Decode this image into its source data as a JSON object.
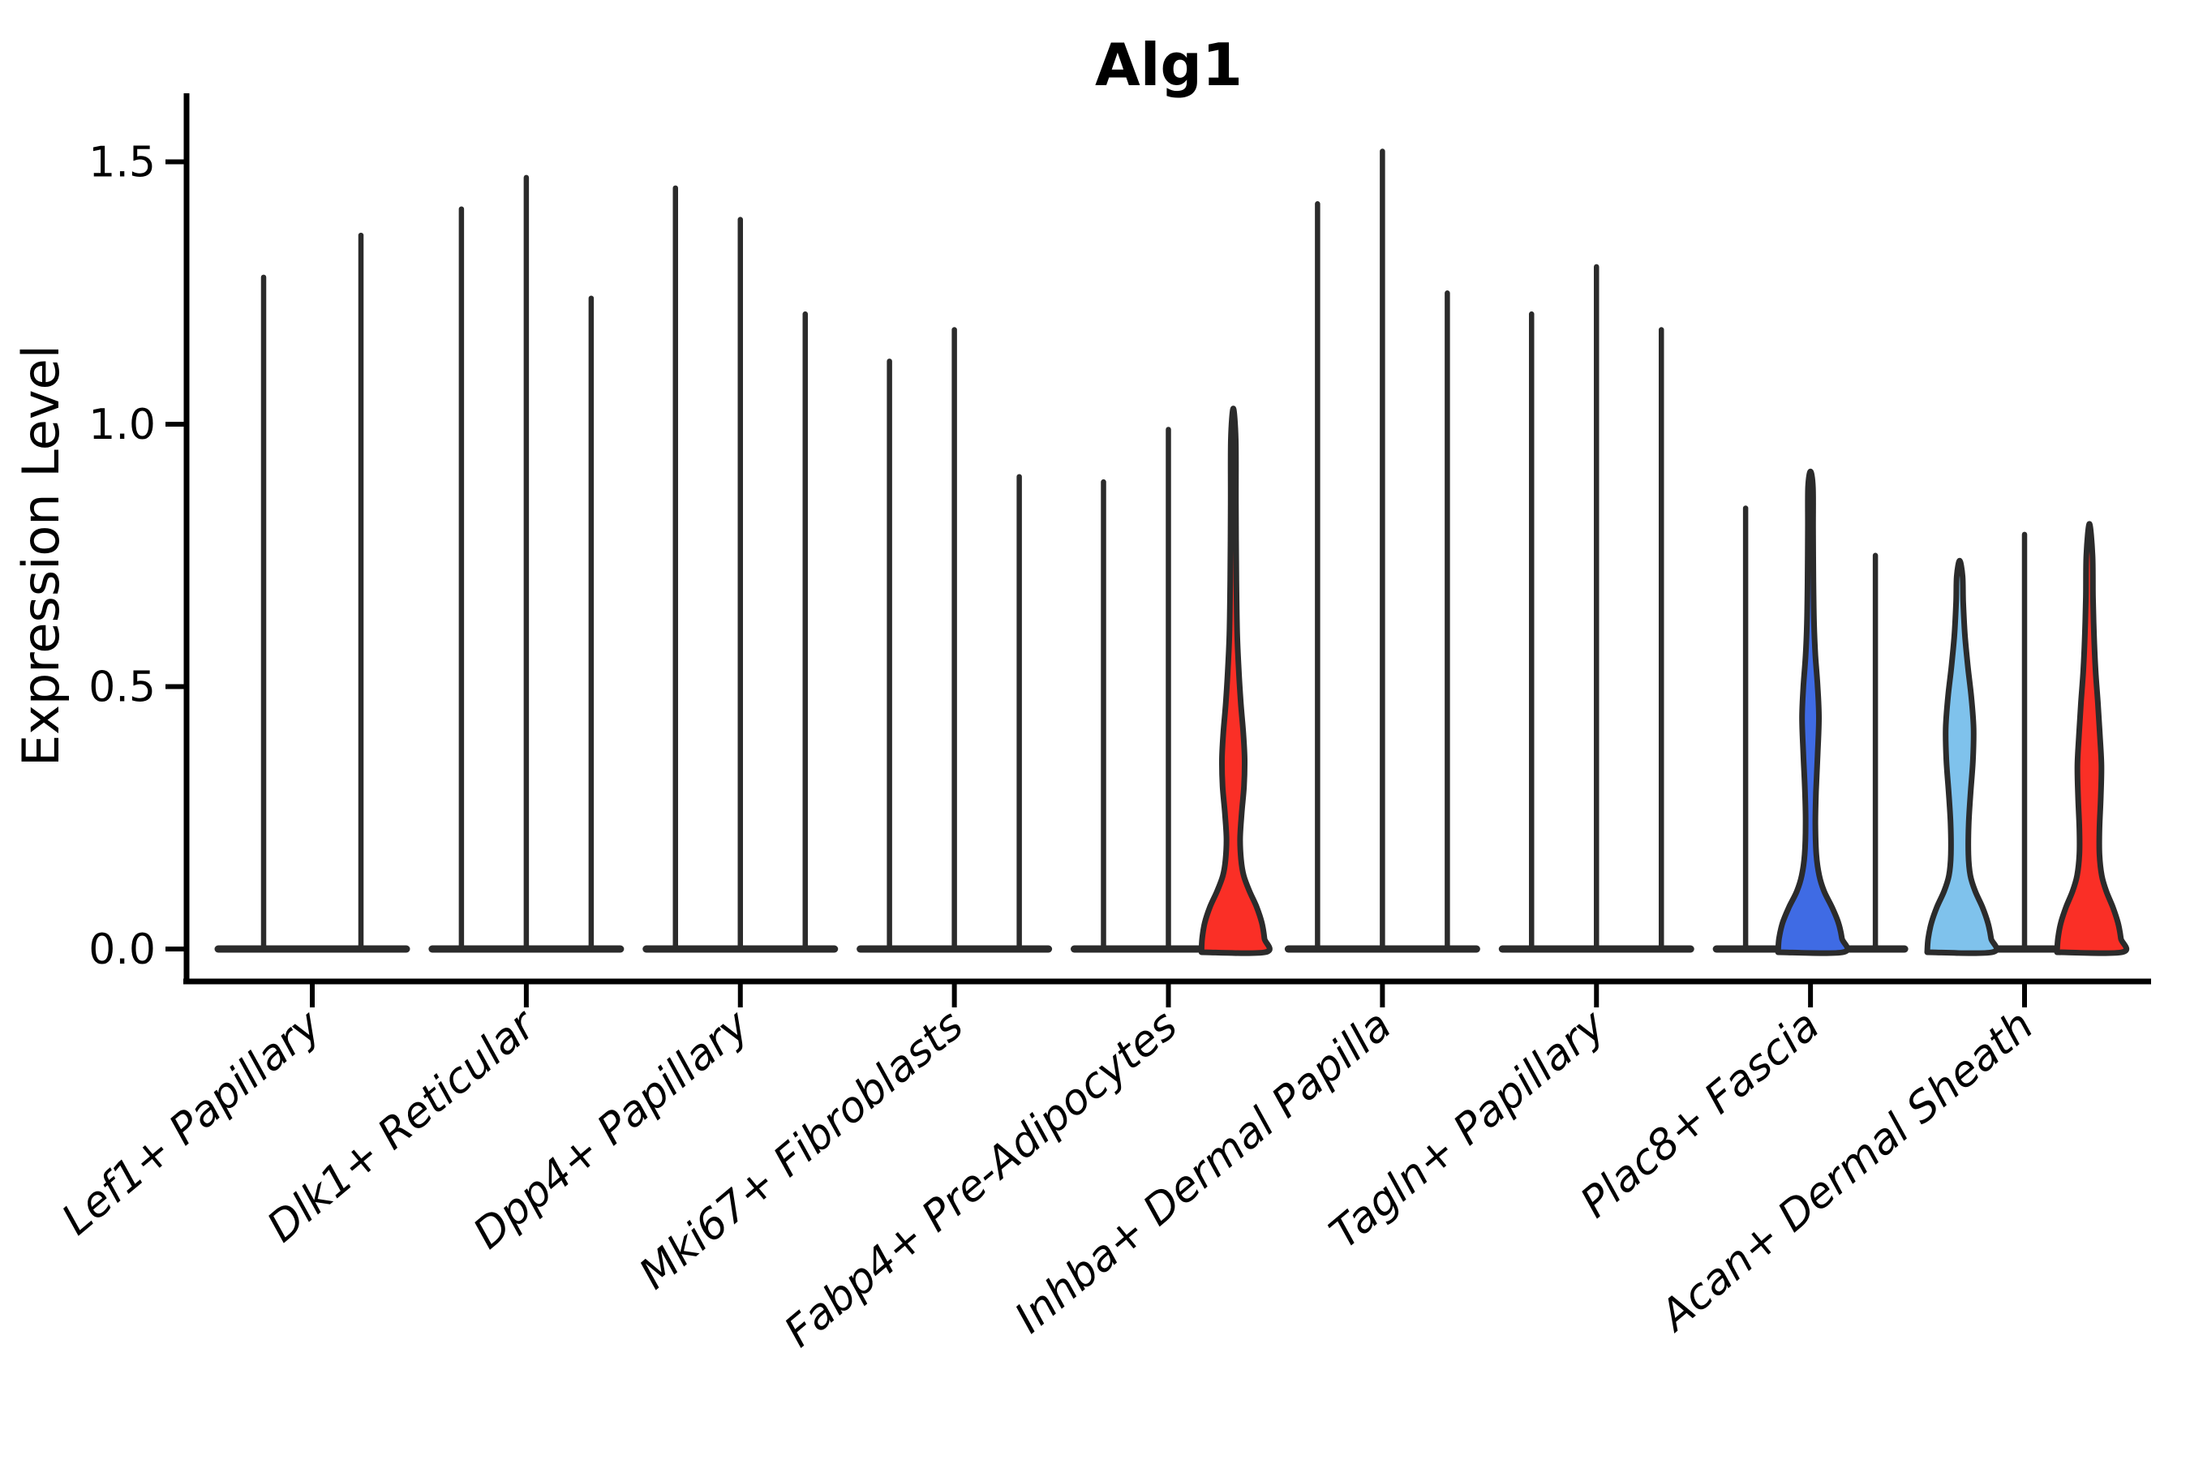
{
  "title": "Alg1",
  "y_axis": {
    "label": "Expression Level",
    "tick_labels": [
      "0.0",
      "0.5",
      "1.0",
      "1.5"
    ],
    "tick_values": [
      0.0,
      0.5,
      1.0,
      1.5
    ]
  },
  "colors": {
    "red": "#fa2f26",
    "blue": "#3f6be4",
    "light_blue": "#7fc2ec",
    "violin_outline": "#2b2b2b",
    "axis": "#000000",
    "background": "#ffffff"
  },
  "chart_data": {
    "type": "violin",
    "title": "Alg1",
    "xlabel": "",
    "ylabel": "Expression Level",
    "ylim": [
      0,
      1.58
    ],
    "yticks": [
      0.0,
      0.5,
      1.0,
      1.5
    ],
    "grid": false,
    "legend": "none",
    "note": "Most violins collapse to a thin spike with a flat base at 0; four violins have visible filled density shapes.",
    "categories": [
      "Lef1+ Papillary",
      "Dlk1+ Reticular",
      "Dpp4+ Papillary",
      "Mki67+ Fibroblasts",
      "Fabp4+ Pre-Adipocytes",
      "Inhba+ Dermal Papilla",
      "Tagln+ Papillary",
      "Plac8+ Fascia",
      "Acan+ Dermal Sheath"
    ],
    "groups": [
      {
        "category": "Lef1+ Papillary",
        "violins": [
          {
            "max_expression": 1.28,
            "fill": null
          },
          {
            "max_expression": 1.36,
            "fill": null
          }
        ]
      },
      {
        "category": "Dlk1+ Reticular",
        "violins": [
          {
            "max_expression": 1.41,
            "fill": null
          },
          {
            "max_expression": 1.47,
            "fill": null
          },
          {
            "max_expression": 1.24,
            "fill": null
          }
        ]
      },
      {
        "category": "Dpp4+ Papillary",
        "violins": [
          {
            "max_expression": 1.45,
            "fill": null
          },
          {
            "max_expression": 1.39,
            "fill": null
          },
          {
            "max_expression": 1.21,
            "fill": null
          }
        ]
      },
      {
        "category": "Mki67+ Fibroblasts",
        "violins": [
          {
            "max_expression": 1.12,
            "fill": null
          },
          {
            "max_expression": 1.18,
            "fill": null
          },
          {
            "max_expression": 0.9,
            "fill": null
          }
        ]
      },
      {
        "category": "Fabp4+ Pre-Adipocytes",
        "violins": [
          {
            "max_expression": 0.89,
            "fill": null
          },
          {
            "max_expression": 0.99,
            "fill": null
          },
          {
            "max_expression": 1.03,
            "fill": "#fa2f26",
            "shape": [
              [
                0,
                0.98
              ],
              [
                0.02,
                0.96
              ],
              [
                0.05,
                0.88
              ],
              [
                0.08,
                0.72
              ],
              [
                0.11,
                0.5
              ],
              [
                0.14,
                0.32
              ],
              [
                0.17,
                0.24
              ],
              [
                0.21,
                0.21
              ],
              [
                0.26,
                0.26
              ],
              [
                0.31,
                0.33
              ],
              [
                0.36,
                0.35
              ],
              [
                0.41,
                0.31
              ],
              [
                0.47,
                0.23
              ],
              [
                0.53,
                0.17
              ],
              [
                0.6,
                0.12
              ],
              [
                0.7,
                0.095
              ],
              [
                0.85,
                0.08
              ],
              [
                0.97,
                0.075
              ],
              [
                1.03,
                0
              ]
            ]
          }
        ]
      },
      {
        "category": "Inhba+ Dermal Papilla",
        "violins": [
          {
            "max_expression": 1.42,
            "fill": null
          },
          {
            "max_expression": 1.52,
            "fill": null
          },
          {
            "max_expression": 1.25,
            "fill": null
          }
        ]
      },
      {
        "category": "Tagln+ Papillary",
        "violins": [
          {
            "max_expression": 1.21,
            "fill": null
          },
          {
            "max_expression": 1.3,
            "fill": null
          },
          {
            "max_expression": 1.18,
            "fill": null
          }
        ]
      },
      {
        "category": "Plac8+ Fascia",
        "violins": [
          {
            "max_expression": 0.84,
            "fill": null
          },
          {
            "max_expression": 0.91,
            "fill": "#3f6be4",
            "shape": [
              [
                0,
                1.0
              ],
              [
                0.02,
                0.97
              ],
              [
                0.05,
                0.86
              ],
              [
                0.08,
                0.66
              ],
              [
                0.11,
                0.42
              ],
              [
                0.14,
                0.27
              ],
              [
                0.18,
                0.18
              ],
              [
                0.24,
                0.15
              ],
              [
                0.3,
                0.17
              ],
              [
                0.37,
                0.22
              ],
              [
                0.44,
                0.26
              ],
              [
                0.5,
                0.22
              ],
              [
                0.56,
                0.15
              ],
              [
                0.62,
                0.11
              ],
              [
                0.7,
                0.09
              ],
              [
                0.8,
                0.08
              ],
              [
                0.88,
                0.075
              ],
              [
                0.91,
                0
              ]
            ]
          },
          {
            "max_expression": 0.75,
            "fill": null
          }
        ]
      },
      {
        "category": "Acan+ Dermal Sheath",
        "violins": [
          {
            "max_expression": 0.74,
            "fill": "#7fc2ec",
            "shape": [
              [
                0,
                1.0
              ],
              [
                0.02,
                0.97
              ],
              [
                0.05,
                0.87
              ],
              [
                0.08,
                0.7
              ],
              [
                0.11,
                0.48
              ],
              [
                0.14,
                0.33
              ],
              [
                0.18,
                0.27
              ],
              [
                0.24,
                0.28
              ],
              [
                0.3,
                0.34
              ],
              [
                0.36,
                0.41
              ],
              [
                0.42,
                0.43
              ],
              [
                0.48,
                0.36
              ],
              [
                0.54,
                0.25
              ],
              [
                0.6,
                0.16
              ],
              [
                0.66,
                0.11
              ],
              [
                0.71,
                0.09
              ],
              [
                0.74,
                0
              ]
            ]
          },
          {
            "max_expression": 0.79,
            "fill": null
          },
          {
            "max_expression": 0.81,
            "fill": "#fa2f26",
            "shape": [
              [
                0,
                1.0
              ],
              [
                0.02,
                0.97
              ],
              [
                0.05,
                0.88
              ],
              [
                0.08,
                0.72
              ],
              [
                0.11,
                0.52
              ],
              [
                0.14,
                0.38
              ],
              [
                0.18,
                0.31
              ],
              [
                0.23,
                0.31
              ],
              [
                0.29,
                0.35
              ],
              [
                0.35,
                0.37
              ],
              [
                0.41,
                0.32
              ],
              [
                0.47,
                0.26
              ],
              [
                0.53,
                0.19
              ],
              [
                0.6,
                0.14
              ],
              [
                0.67,
                0.11
              ],
              [
                0.75,
                0.095
              ],
              [
                0.81,
                0
              ]
            ]
          }
        ]
      }
    ]
  }
}
